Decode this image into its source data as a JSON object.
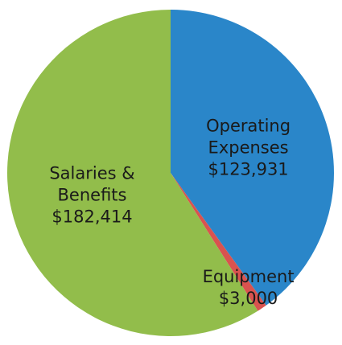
{
  "chart_data": {
    "type": "pie",
    "categories": [
      "Operating Expenses",
      "Equipment",
      "Salaries & Benefits"
    ],
    "values": [
      123931,
      3000,
      182414
    ],
    "value_labels": [
      "$123,931",
      "$3,000",
      "$182,414"
    ],
    "colors": [
      "#2a86c9",
      "#d9534f",
      "#92bd4b"
    ]
  }
}
